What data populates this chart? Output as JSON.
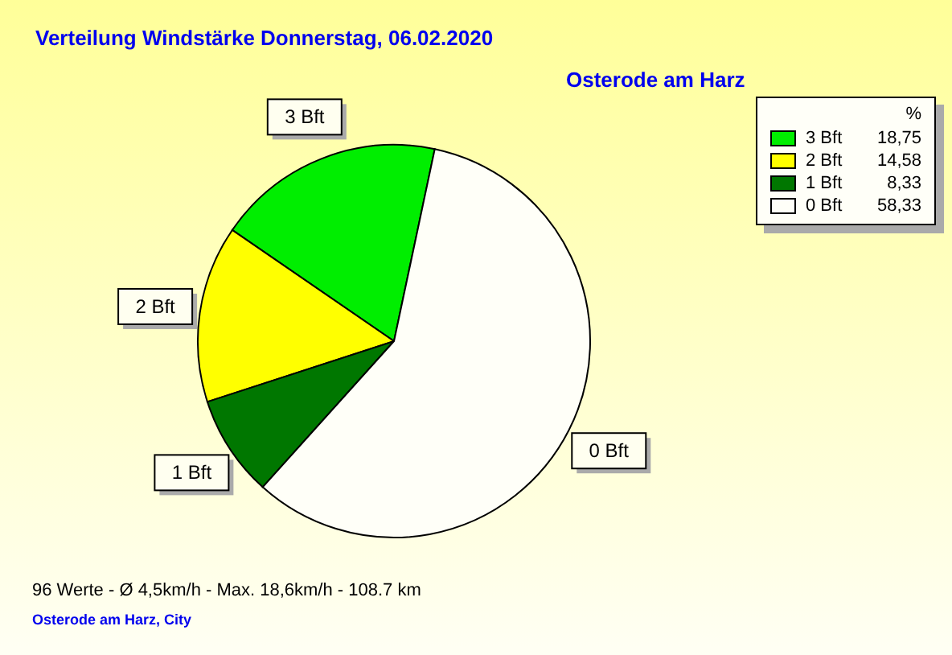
{
  "chart_data": {
    "type": "pie",
    "title": "Verteilung Windstärke  Donnerstag, 06.02.2020",
    "subtitle": "Osterode am Harz",
    "categories": [
      "3 Bft",
      "2 Bft",
      "1 Bft",
      "0 Bft"
    ],
    "values": [
      18.75,
      14.58,
      8.33,
      58.33
    ],
    "value_labels": [
      "18,75",
      "14,58",
      "8,33",
      "58,33"
    ],
    "colors": [
      "#00ee00",
      "#ffff00",
      "#007700",
      "#fffff8"
    ],
    "legend": "top right",
    "legend_title": "%",
    "annotations": [
      "96 Werte   -   Ø 4,5km/h  -  Max. 18,6km/h   -   108.7 km",
      "Osterode am Harz, City"
    ]
  }
}
